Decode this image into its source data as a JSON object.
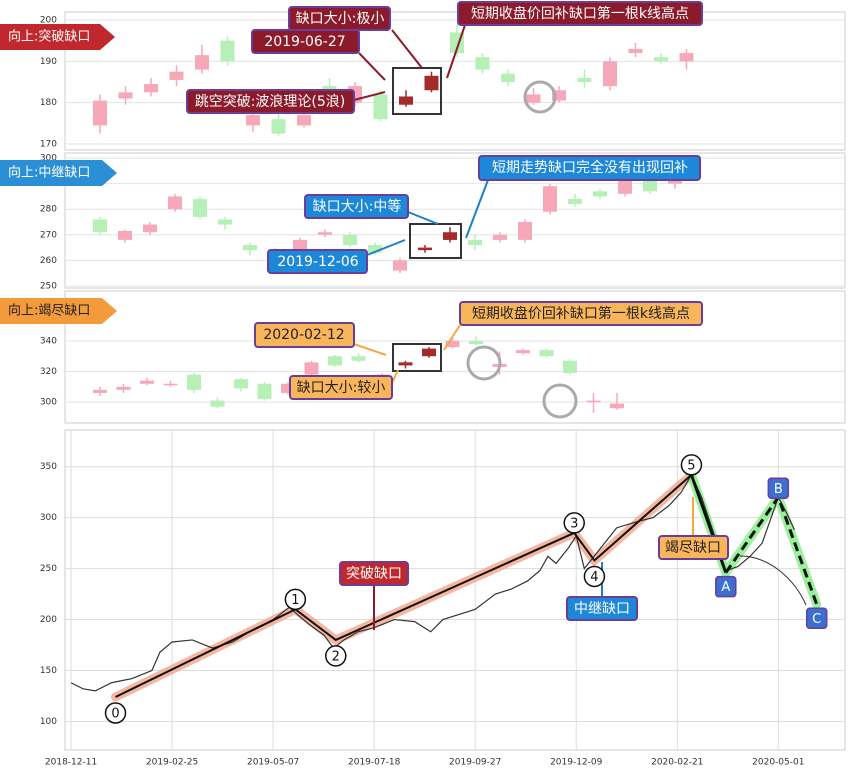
{
  "chart_data": [
    {
      "type": "candlestick",
      "label": "向上:突破缺口",
      "ylim": [
        170,
        200
      ],
      "yticks": [
        170,
        180,
        190,
        200
      ],
      "open": [
        174.5,
        181,
        182.5,
        185.5,
        188,
        195,
        174.5,
        176,
        174.5,
        184,
        180,
        182,
        179.5,
        183,
        197,
        191,
        187,
        180,
        180.5,
        186,
        184,
        192,
        191,
        190
      ],
      "close": [
        180.5,
        182.5,
        184.5,
        187.5,
        191.5,
        190,
        177,
        172.5,
        177,
        182,
        184,
        176,
        181.5,
        186.5,
        192,
        188,
        185,
        182,
        183,
        185,
        190,
        193,
        190,
        192
      ],
      "high": [
        182,
        184,
        186,
        189,
        194,
        196,
        179,
        178,
        179,
        186,
        185,
        183,
        183,
        187.5,
        199,
        192,
        188,
        183.5,
        184,
        188,
        191,
        194.5,
        192,
        193
      ],
      "low": [
        172.5,
        179.5,
        181.5,
        184,
        187,
        189,
        173,
        172,
        174,
        181,
        179,
        175.5,
        179,
        182.5,
        191,
        187,
        184,
        179.5,
        180,
        183.5,
        183,
        191,
        189.5,
        188
      ],
      "colors": [
        "#f7a8b8",
        "#f7a8b8",
        "#f7a8b8",
        "#f7a8b8",
        "#f7a8b8",
        "#b6f0b6",
        "#f7a8b8",
        "#b6f0b6",
        "#f7a8b8",
        "#b6f0b6",
        "#f7a8b8",
        "#b6f0b6",
        "#a52a2a",
        "#a52a2a",
        "#b6f0b6",
        "#b6f0b6",
        "#b6f0b6",
        "#f7a8b8",
        "#f7a8b8",
        "#b6f0b6",
        "#f7a8b8",
        "#f7a8b8",
        "#b6f0b6",
        "#f7a8b8"
      ],
      "annotations": [
        "缺口大小:极小",
        "2019-06-27",
        "跳空突破:波浪理论(5浪)",
        "短期收盘价回补缺口第一根k线高点"
      ]
    },
    {
      "type": "candlestick",
      "label": "向上:中继缺口",
      "ylim": [
        250,
        300
      ],
      "yticks": [
        250,
        260,
        270,
        280,
        290,
        300
      ],
      "open": [
        276,
        268,
        271,
        280,
        284,
        276,
        266,
        264,
        262,
        270,
        270,
        266,
        256,
        264,
        268,
        268,
        268,
        268,
        279,
        284,
        287,
        286,
        292,
        290
      ],
      "close": [
        271,
        271.5,
        274,
        285,
        277,
        274,
        264,
        262,
        268,
        271,
        266,
        263,
        260,
        265,
        271,
        266,
        270,
        275,
        289,
        282,
        285,
        291,
        287,
        293
      ],
      "high": [
        277,
        272,
        275,
        286,
        285,
        277,
        267,
        265,
        269,
        272,
        271,
        267,
        261,
        266,
        273,
        270,
        271,
        276,
        290,
        286,
        288,
        293,
        293,
        294
      ],
      "low": [
        270,
        267,
        270,
        279,
        276,
        272,
        262,
        260,
        261,
        269,
        265,
        262,
        255,
        263,
        267,
        264,
        267,
        267,
        278,
        281,
        284,
        285,
        286,
        288
      ],
      "colors": [
        "#b6f0b6",
        "#f7a8b8",
        "#f7a8b8",
        "#f7a8b8",
        "#b6f0b6",
        "#b6f0b6",
        "#b6f0b6",
        "#b6f0b6",
        "#f7a8b8",
        "#f7a8b8",
        "#b6f0b6",
        "#b6f0b6",
        "#f7a8b8",
        "#a52a2a",
        "#a52a2a",
        "#b6f0b6",
        "#f7a8b8",
        "#f7a8b8",
        "#f7a8b8",
        "#b6f0b6",
        "#b6f0b6",
        "#f7a8b8",
        "#b6f0b6",
        "#f7a8b8"
      ],
      "annotations": [
        "短期走势缺口完全没有出现回补",
        "缺口大小:中等",
        "2019-12-06"
      ]
    },
    {
      "type": "candlestick",
      "label": "向上:竭尽缺口",
      "ylim": [
        287,
        372
      ],
      "yticks": [
        300,
        320,
        340
      ],
      "open": [
        306,
        308,
        312,
        311,
        318,
        301,
        315,
        312,
        306,
        318,
        330,
        330,
        316,
        324,
        330,
        336,
        340,
        323,
        332,
        334,
        327,
        300,
        296
      ],
      "close": [
        308,
        310,
        314,
        312,
        308,
        297,
        309,
        302,
        312,
        326,
        324,
        327,
        318,
        326,
        335,
        340,
        338,
        325,
        334,
        330,
        319,
        301,
        299
      ],
      "high": [
        310,
        312,
        316,
        314,
        319,
        303,
        316,
        313,
        313,
        327,
        331,
        332,
        319,
        327,
        336,
        342,
        343,
        333,
        335,
        335,
        328,
        306,
        306
      ],
      "low": [
        304,
        306,
        311,
        310,
        306,
        296,
        307,
        301,
        305,
        317,
        323,
        326,
        315,
        322,
        329,
        335,
        337,
        318,
        331,
        329,
        318,
        293,
        295
      ],
      "colors": [
        "#f7a8b8",
        "#f7a8b8",
        "#f7a8b8",
        "#f7a8b8",
        "#b6f0b6",
        "#b6f0b6",
        "#b6f0b6",
        "#b6f0b6",
        "#f7a8b8",
        "#f7a8b8",
        "#b6f0b6",
        "#b6f0b6",
        "#f7a8b8",
        "#a52a2a",
        "#a52a2a",
        "#f7a8b8",
        "#b6f0b6",
        "#f7a8b8",
        "#f7a8b8",
        "#b6f0b6",
        "#b6f0b6",
        "#f7a8b8",
        "#f7a8b8"
      ],
      "annotations": [
        "短期收盘价回补缺口第一根k线高点",
        "2020-02-12",
        "缺口大小:较小"
      ]
    },
    {
      "type": "line",
      "color": "#333333",
      "x": [
        0,
        6,
        12,
        20,
        30,
        40,
        44,
        50,
        60,
        70,
        80,
        90,
        100,
        108,
        112,
        118,
        125,
        130,
        135,
        142,
        150,
        160,
        170,
        178,
        184,
        192,
        200,
        210,
        218,
        226,
        232,
        236,
        240,
        246,
        250,
        254,
        256,
        262,
        270,
        280,
        288,
        296,
        302,
        307,
        312,
        318,
        324,
        330,
        336,
        342,
        350,
        354,
        358
      ],
      "values": [
        138,
        132,
        130,
        138,
        142,
        150,
        168,
        178,
        180,
        172,
        178,
        190,
        200,
        212,
        205,
        195,
        185,
        172,
        180,
        188,
        192,
        200,
        198,
        188,
        200,
        205,
        210,
        225,
        230,
        238,
        248,
        262,
        255,
        270,
        282,
        250,
        255,
        270,
        290,
        296,
        300,
        312,
        325,
        342,
        320,
        285,
        248,
        252,
        262,
        275,
        320,
        305,
        288
      ],
      "xlim": [
        -3,
        383
      ],
      "xticks": [
        {
          "value": 0,
          "label": "2018-12-11"
        },
        {
          "value": 50,
          "label": "2019-02-25"
        },
        {
          "value": 100,
          "label": "2019-05-07"
        },
        {
          "value": 150,
          "label": "2019-07-18"
        },
        {
          "value": 200,
          "label": "2019-09-27"
        },
        {
          "value": 250,
          "label": "2019-12-09"
        },
        {
          "value": 300,
          "label": "2020-02-21"
        },
        {
          "value": 350,
          "label": "2020-05-01"
        }
      ],
      "ylim": [
        72,
        386
      ],
      "yticks": [
        100,
        150,
        200,
        250,
        300,
        350
      ],
      "waves": {
        "labels": [
          "0",
          "1",
          "2",
          "3",
          "4",
          "5"
        ],
        "x": [
          22,
          111,
          131,
          249,
          259,
          307
        ],
        "values": [
          124,
          210,
          180,
          285,
          258,
          342
        ],
        "color": "#f4a58a"
      },
      "correction": {
        "labels": [
          "A",
          "B",
          "C"
        ],
        "x": [
          324,
          350,
          369
        ],
        "values": [
          246,
          320,
          215
        ],
        "color": "#90ee90"
      },
      "annotations": [
        "突破缺口",
        "中继缺口",
        "竭尽缺口"
      ]
    }
  ]
}
